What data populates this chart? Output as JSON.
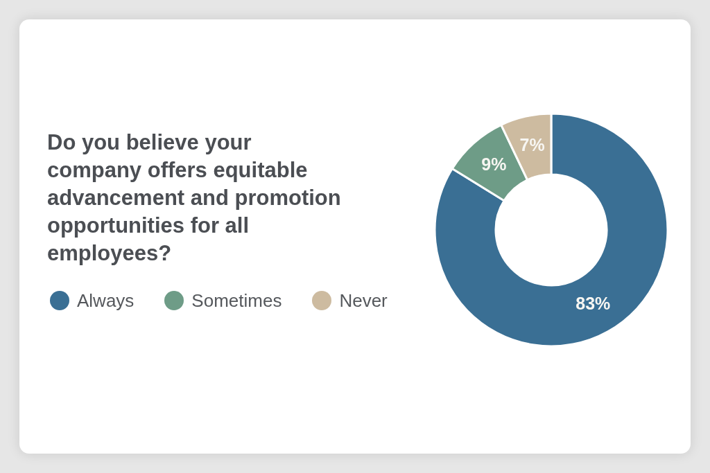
{
  "chart_data": {
    "type": "donut",
    "title": "Do you believe your company offers equitable advancement and promotion opportunities for all employees?",
    "categories": [
      "Always",
      "Sometimes",
      "Never"
    ],
    "values": [
      83,
      9,
      7
    ],
    "colors": [
      "#3a6f94",
      "#6e9c87",
      "#cdbba0"
    ],
    "value_labels": [
      "83%",
      "9%",
      "7%"
    ],
    "legend": "left"
  }
}
